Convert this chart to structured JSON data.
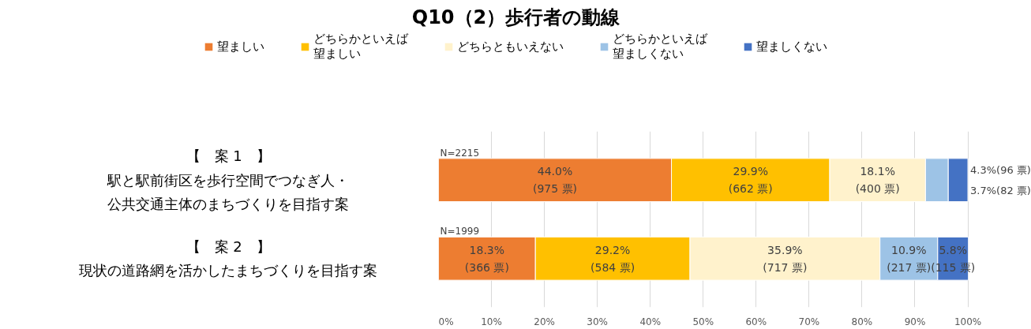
{
  "chart_data": {
    "type": "bar",
    "orientation": "horizontal",
    "stacked": true,
    "title": "Q10（2）歩行者の動線",
    "categories": [
      "【　案 1　】駅と駅前街区を歩行空間でつなぎ人・公共交通主体のまちづくりを目指す案",
      "【　案 2　】現状の道路網を活かしたまちづくりを目指す案"
    ],
    "series": [
      {
        "name": "望ましい",
        "color": "#ed7d31",
        "values": [
          44.0,
          18.3
        ],
        "value_labels": [
          "44.0%\n(975 票)",
          "18.3%\n(366 票)"
        ]
      },
      {
        "name": "どちらかといえば望ましい",
        "color": "#ffc000",
        "values": [
          29.9,
          29.2
        ],
        "value_labels": [
          "29.9%\n(662 票)",
          "29.2%\n(584 票)"
        ]
      },
      {
        "name": "どちらともいえない",
        "color": "#fff2cc",
        "values": [
          18.1,
          35.9
        ],
        "value_labels": [
          "18.1%\n(400 票)",
          "35.9%\n(717 票)"
        ]
      },
      {
        "name": "どちらかといえば望ましくない",
        "color": "#9dc3e6",
        "values": [
          4.3,
          10.9
        ],
        "value_labels": [
          "4.3%(96 票)",
          "10.9%\n(217 票)"
        ]
      },
      {
        "name": "望ましくない",
        "color": "#4472c4",
        "values": [
          3.7,
          5.8
        ],
        "value_labels": [
          "3.7%(82 票)",
          "5.8%\n(115 票)"
        ]
      }
    ],
    "annotations": [
      {
        "text": "N=2215",
        "x": 0,
        "y": "【　案 1　】駅と駅前街区を歩行空間でつなぎ人・公共交通主体のまちづくりを目指す案"
      },
      {
        "text": "N=1999",
        "x": 0,
        "y": "【　案 2　】現状の道路網を活かしたまちづくりを目指す案"
      }
    ],
    "xlim": [
      0,
      100
    ],
    "xticks": [
      {
        "value": 0,
        "label": "0%"
      },
      {
        "value": 10,
        "label": "10%"
      },
      {
        "value": 20,
        "label": "20%"
      },
      {
        "value": 30,
        "label": "30%"
      },
      {
        "value": 40,
        "label": "40%"
      },
      {
        "value": 50,
        "label": "50%"
      },
      {
        "value": 60,
        "label": "60%"
      },
      {
        "value": 70,
        "label": "70%"
      },
      {
        "value": 80,
        "label": "80%"
      },
      {
        "value": 90,
        "label": "90%"
      },
      {
        "value": 100,
        "label": "100%"
      }
    ],
    "grid": "x",
    "legend": "top"
  }
}
